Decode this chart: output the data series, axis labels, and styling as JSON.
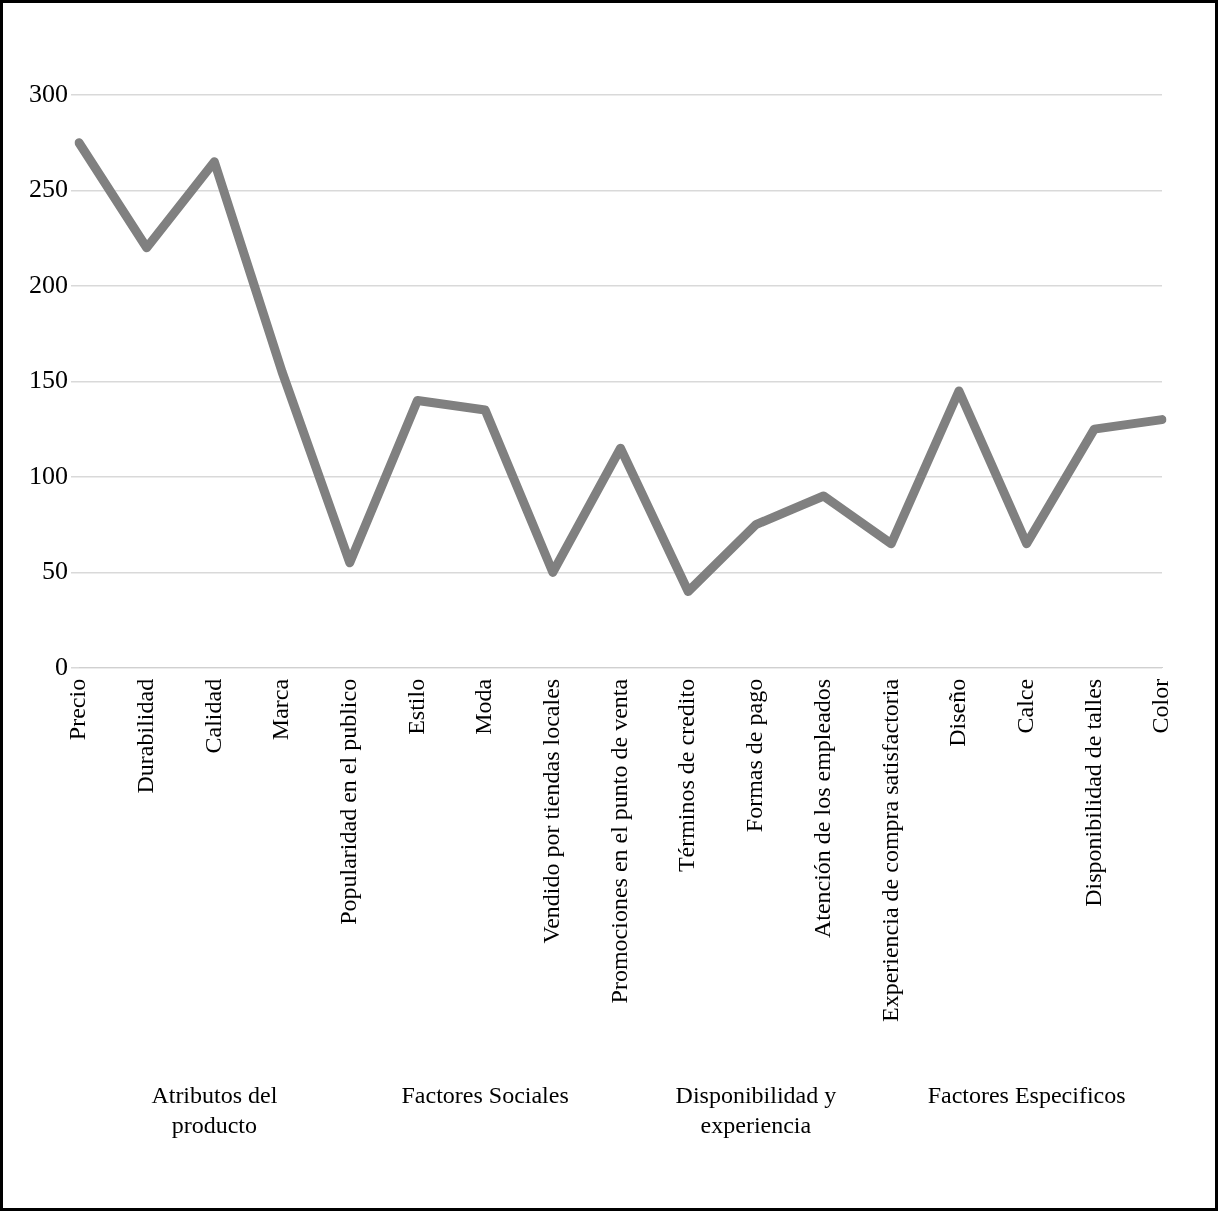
{
  "chart_data": {
    "type": "line",
    "categories": [
      "Precio",
      "Durabilidad",
      "Calidad",
      "Marca",
      "Popularidad en el publico",
      "Estilo",
      "Moda",
      "Vendido por tiendas locales",
      "Promociones en el punto de venta",
      "Términos de credito",
      "Formas de pago",
      "Atención de los empleados",
      "Experiencia de compra satisfactoria",
      "Diseño",
      "Calce",
      "Disponibilidad de talles",
      "Color"
    ],
    "series": [
      {
        "color": "#808080",
        "values": [
          275,
          220,
          265,
          155,
          55,
          140,
          135,
          50,
          115,
          40,
          75,
          90,
          65,
          145,
          65,
          125,
          130
        ]
      }
    ],
    "ylim": [
      0,
      300
    ],
    "yticks": [
      0,
      50,
      100,
      150,
      200,
      250,
      300
    ],
    "grid": "y",
    "legend": false,
    "marker": "none",
    "line_style": "solid",
    "annotations": [
      "Atributos del producto",
      "Factores Sociales",
      "Disponibilidad y experiencia",
      "Factores Especificos"
    ]
  }
}
